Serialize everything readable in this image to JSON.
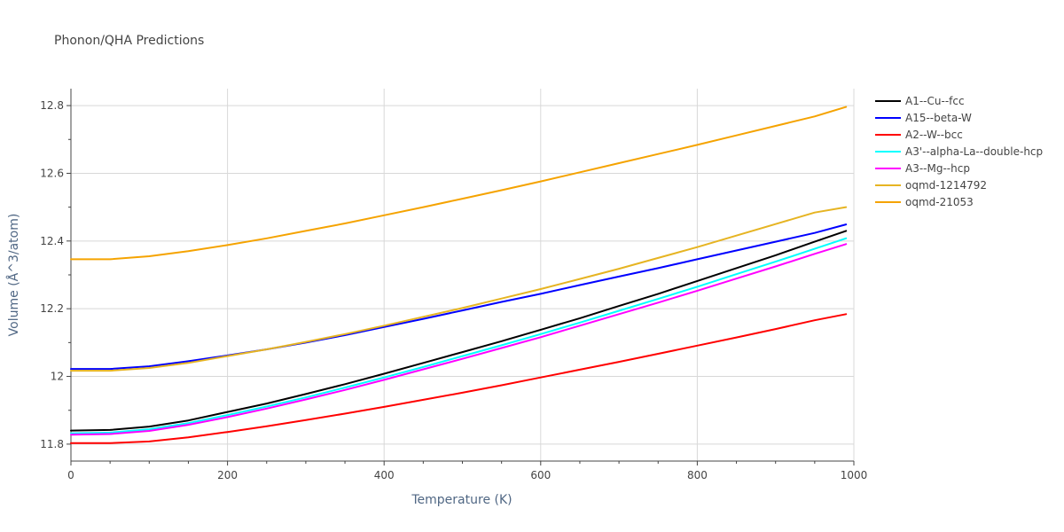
{
  "chart_data": {
    "type": "line",
    "title": "Phonon/QHA Predictions",
    "xlabel": "Temperature (K)",
    "ylabel": "Volume (Å^3/atom)",
    "xlim": [
      0,
      1000
    ],
    "ylim": [
      11.75,
      12.85
    ],
    "x_ticks": [
      0,
      200,
      400,
      600,
      800,
      1000
    ],
    "x_tick_labels": [
      "0",
      "200",
      "400",
      "600",
      "800",
      "1000"
    ],
    "y_ticks": [
      11.8,
      12.0,
      12.2,
      12.4,
      12.6,
      12.8
    ],
    "y_tick_labels": [
      "11.8",
      "12",
      "12.2",
      "12.4",
      "12.6",
      "12.8"
    ],
    "grid": true,
    "legend_position": "top-right outside",
    "x": [
      0,
      50,
      100,
      150,
      200,
      250,
      300,
      350,
      400,
      450,
      500,
      550,
      600,
      650,
      700,
      750,
      800,
      850,
      900,
      950,
      990
    ],
    "series": [
      {
        "name": "A1--Cu--fcc",
        "color": "#000000",
        "values": [
          11.84,
          11.842,
          11.852,
          11.87,
          11.895,
          11.92,
          11.948,
          11.977,
          12.008,
          12.04,
          12.072,
          12.104,
          12.138,
          12.172,
          12.208,
          12.244,
          12.282,
          12.32,
          12.358,
          12.398,
          12.43
        ]
      },
      {
        "name": "A15--beta-W",
        "color": "#0000ff",
        "values": [
          12.022,
          12.022,
          12.03,
          12.045,
          12.062,
          12.08,
          12.1,
          12.122,
          12.146,
          12.17,
          12.195,
          12.22,
          12.244,
          12.27,
          12.295,
          12.32,
          12.346,
          12.372,
          12.398,
          12.424,
          12.449
        ]
      },
      {
        "name": "A2--W--bcc",
        "color": "#ff0000",
        "values": [
          11.803,
          11.803,
          11.808,
          11.82,
          11.836,
          11.853,
          11.871,
          11.89,
          11.91,
          11.931,
          11.952,
          11.974,
          11.997,
          12.02,
          12.043,
          12.067,
          12.091,
          12.115,
          12.14,
          12.166,
          12.184
        ]
      },
      {
        "name": "A3'--alpha-La--double-hcp",
        "color": "#00ffff",
        "values": [
          11.832,
          11.834,
          11.844,
          11.862,
          11.886,
          11.911,
          11.938,
          11.967,
          11.997,
          12.028,
          12.06,
          12.092,
          12.125,
          12.159,
          12.194,
          12.229,
          12.265,
          12.302,
          12.339,
          12.377,
          12.408
        ]
      },
      {
        "name": "A3--Mg--hcp",
        "color": "#ff00ff",
        "values": [
          11.828,
          11.83,
          11.839,
          11.857,
          11.88,
          11.905,
          11.932,
          11.96,
          11.99,
          12.021,
          12.052,
          12.084,
          12.116,
          12.15,
          12.184,
          12.218,
          12.253,
          12.289,
          12.325,
          12.362,
          12.391
        ]
      },
      {
        "name": "oqmd-1214792",
        "color": "#e6b422",
        "values": [
          12.017,
          12.017,
          12.025,
          12.04,
          12.06,
          12.08,
          12.102,
          12.125,
          12.15,
          12.176,
          12.202,
          12.23,
          12.258,
          12.288,
          12.318,
          12.35,
          12.382,
          12.416,
          12.45,
          12.484,
          12.5
        ]
      },
      {
        "name": "oqmd-21053",
        "color": "#f5a300",
        "values": [
          12.346,
          12.346,
          12.355,
          12.37,
          12.388,
          12.408,
          12.43,
          12.452,
          12.476,
          12.5,
          12.525,
          12.55,
          12.576,
          12.603,
          12.63,
          12.657,
          12.684,
          12.712,
          12.74,
          12.768,
          12.796
        ]
      }
    ]
  }
}
